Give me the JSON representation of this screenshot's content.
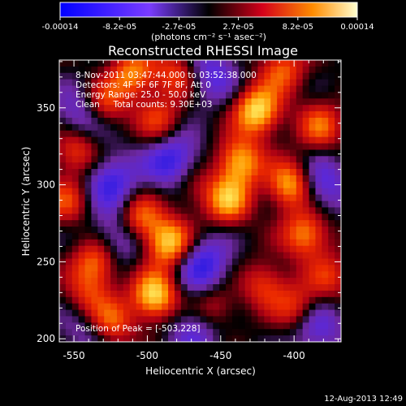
{
  "chart_data": {
    "type": "heatmap",
    "title": "Reconstructed RHESSI Image",
    "xlabel": "Heliocentric X (arcsec)",
    "ylabel": "Heliocentric Y (arcsec)",
    "xlim": [
      -560,
      -368
    ],
    "ylim": [
      198,
      381
    ],
    "x_ticks": [
      -550,
      -500,
      -450,
      -400
    ],
    "x_tick_labels": [
      "-550",
      "-500",
      "-450",
      "-400"
    ],
    "y_ticks": [
      200,
      250,
      300,
      350
    ],
    "y_tick_labels": [
      "200",
      "250",
      "300",
      "350"
    ],
    "colorbar": {
      "range": [
        -0.00014,
        0.00014
      ],
      "tick_labels": [
        "-0.00014",
        "-8.2e-05",
        "-2.7e-05",
        "2.7e-05",
        "8.2e-05",
        "0.00014"
      ],
      "unit_label": "(photons cm⁻² s⁻¹ asec⁻²)"
    },
    "annotations": [
      "8-Nov-2011 03:47:44.000 to 03:52:38.000",
      "Detectors: 4F 5F 6F 7F 8F, Att 0",
      "Energy Range: 25.0 - 50.0 keV",
      "Clean     Total counts: 9.30E+03"
    ],
    "peak_label": "Position of Peak = [-503,228]",
    "peak": [
      -503,
      228
    ],
    "sources": [
      {
        "x": -495,
        "y": 228,
        "level": 1.0
      },
      {
        "x": -485,
        "y": 262,
        "level": 0.95
      },
      {
        "x": -505,
        "y": 278,
        "level": 0.7
      },
      {
        "x": -535,
        "y": 250,
        "level": 0.7
      },
      {
        "x": -425,
        "y": 348,
        "level": 1.0
      },
      {
        "x": -437,
        "y": 315,
        "level": 0.85
      },
      {
        "x": -445,
        "y": 290,
        "level": 0.8
      },
      {
        "x": -402,
        "y": 300,
        "level": 0.9
      },
      {
        "x": -392,
        "y": 268,
        "level": 0.75
      },
      {
        "x": -382,
        "y": 338,
        "level": 0.6
      },
      {
        "x": -510,
        "y": 372,
        "level": 0.7
      },
      {
        "x": -530,
        "y": 352,
        "level": 0.65
      },
      {
        "x": -492,
        "y": 342,
        "level": 0.5
      },
      {
        "x": -480,
        "y": 372,
        "level": 0.55
      },
      {
        "x": -548,
        "y": 322,
        "level": 0.6
      },
      {
        "x": -555,
        "y": 290,
        "level": 0.5
      },
      {
        "x": -525,
        "y": 210,
        "level": 0.65
      },
      {
        "x": -540,
        "y": 228,
        "level": 0.45
      },
      {
        "x": -420,
        "y": 235,
        "level": 0.5
      },
      {
        "x": -398,
        "y": 220,
        "level": 0.55
      },
      {
        "x": -455,
        "y": 220,
        "level": 0.45
      },
      {
        "x": -470,
        "y": 300,
        "level": 0.35
      },
      {
        "x": -408,
        "y": 375,
        "level": 0.6
      },
      {
        "x": -376,
        "y": 240,
        "level": 0.45
      }
    ],
    "voids": [
      {
        "x": -543,
        "y": 345,
        "level": 0.55
      },
      {
        "x": -525,
        "y": 302,
        "level": 0.6
      },
      {
        "x": -482,
        "y": 315,
        "level": 0.7
      },
      {
        "x": -520,
        "y": 265,
        "level": 0.5
      },
      {
        "x": -462,
        "y": 248,
        "level": 0.65
      },
      {
        "x": -457,
        "y": 372,
        "level": 0.5
      },
      {
        "x": -382,
        "y": 300,
        "level": 0.55
      },
      {
        "x": -467,
        "y": 206,
        "level": 0.45
      },
      {
        "x": -540,
        "y": 205,
        "level": 0.35
      },
      {
        "x": -385,
        "y": 208,
        "level": 0.5
      }
    ]
  },
  "footer": {
    "timestamp": "12-Aug-2013 12:49"
  }
}
